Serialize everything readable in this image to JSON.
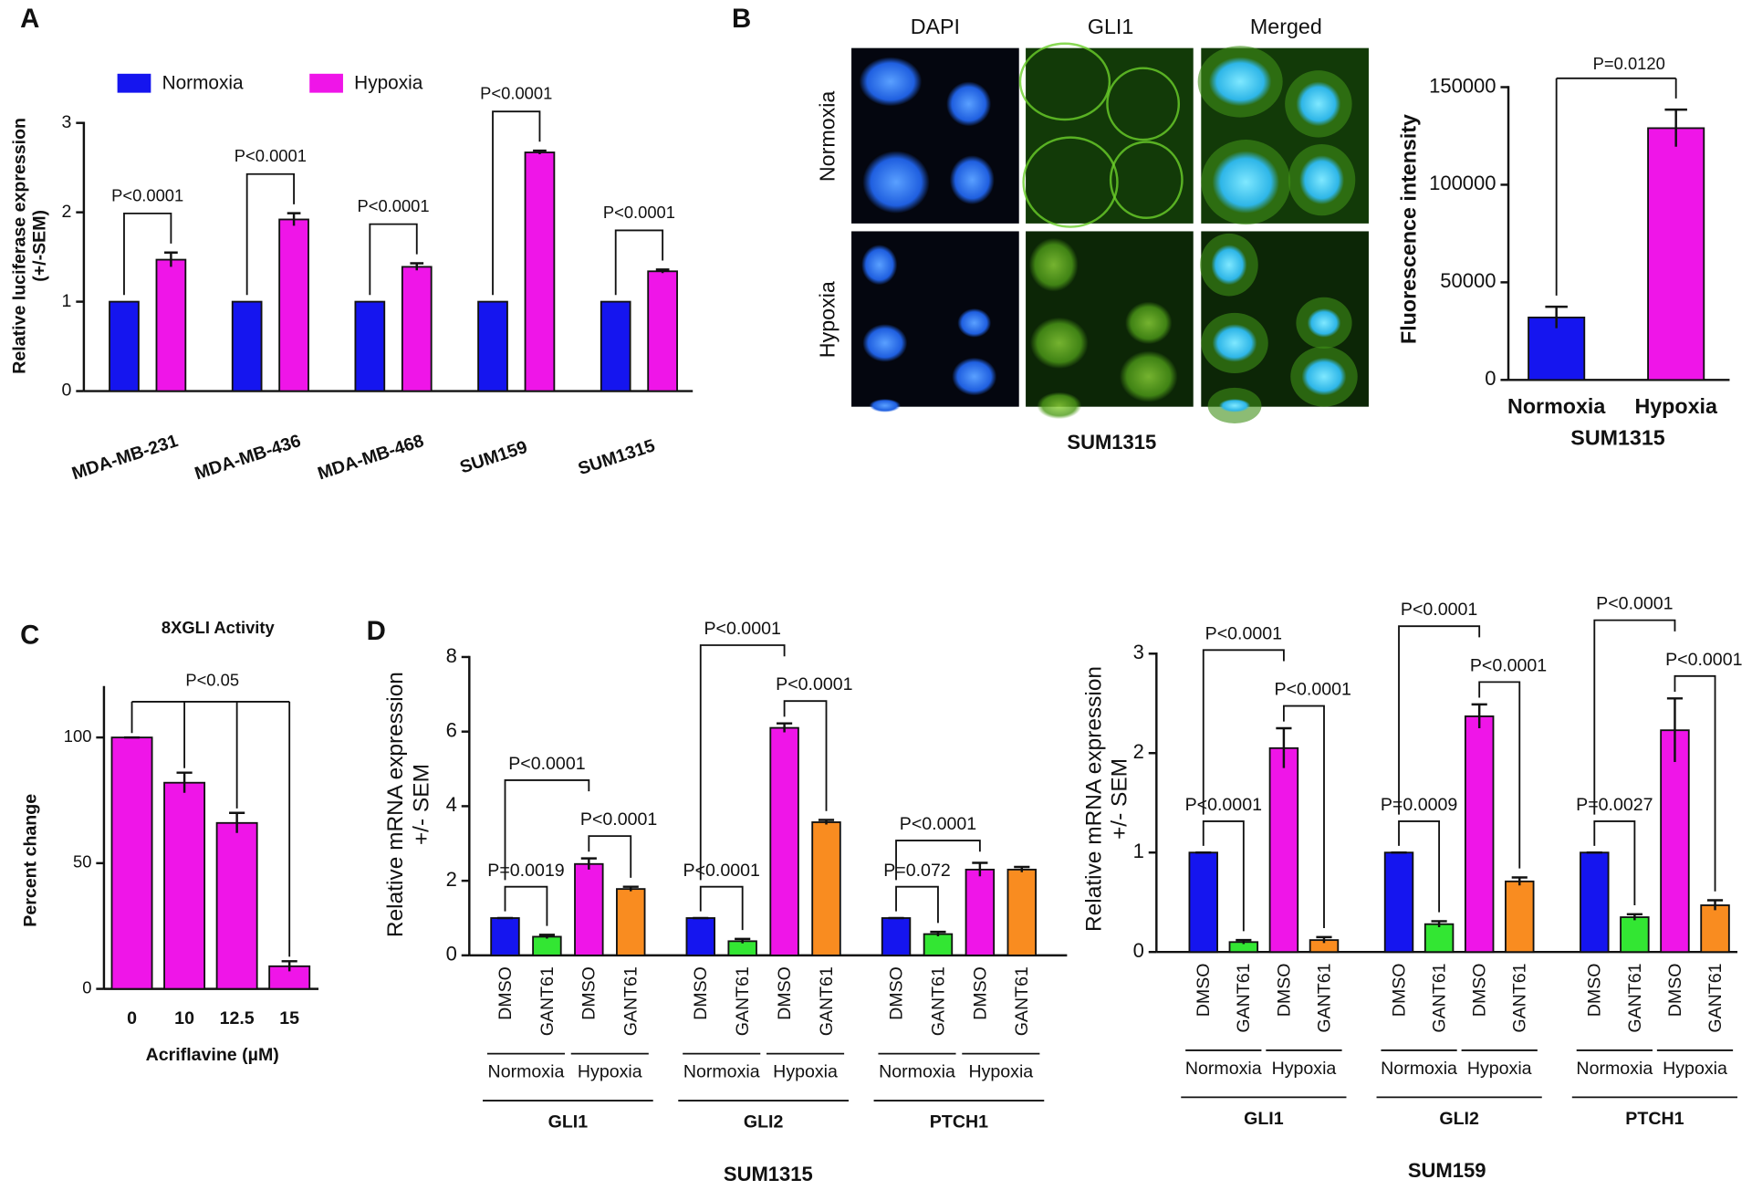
{
  "panel_labels": [
    "A",
    "B",
    "C",
    "D"
  ],
  "micrograph": {
    "columns": [
      "DAPI",
      "GLI1",
      "Merged"
    ],
    "rows": [
      "Normoxia",
      "Hypoxia"
    ],
    "caption": "SUM1315"
  },
  "chart_data": [
    {
      "type": "grouped-bar",
      "ylabel": [
        "Relative luciferase expression",
        "(+/-SEM)"
      ],
      "categories": [
        "MDA-MB-231",
        "MDA-MB-436",
        "MDA-MB-468",
        "SUM159",
        "SUM1315"
      ],
      "series": [
        {
          "name": "Normoxia",
          "color": "#1515ef",
          "values": [
            1,
            1,
            1,
            1,
            1
          ]
        },
        {
          "name": "Hypoxia",
          "color": "#ef15e8",
          "values": [
            1.47,
            1.92,
            1.39,
            2.67,
            1.34
          ],
          "errors": [
            0.08,
            0.07,
            0.04,
            0.02,
            0.02
          ]
        }
      ],
      "annotations": [
        "P<0.0001",
        "P<0.0001",
        "P<0.0001",
        "P<0.0001",
        "P<0.0001"
      ],
      "ylim": [
        0,
        3
      ],
      "yticks": [
        0,
        1,
        2,
        3
      ]
    },
    {
      "type": "bar",
      "ylabel": "Fluorescence intensity",
      "xlabel": "SUM1315",
      "categories": [
        "Normoxia",
        "Hypoxia"
      ],
      "values": [
        32000,
        129000
      ],
      "errors": [
        5500,
        9500
      ],
      "colors": [
        "#1515ef",
        "#ef15e8"
      ],
      "annotations": [
        "P=0.0120"
      ],
      "ylim": [
        0,
        150000
      ],
      "yticks": [
        0,
        50000,
        100000,
        150000
      ]
    },
    {
      "type": "bar",
      "title": "8XGLI Activity",
      "ylabel": "Percent change",
      "xlabel": "Acriflavine (µM)",
      "categories": [
        "0",
        "10",
        "12.5",
        "15"
      ],
      "values": [
        100,
        82,
        66,
        9
      ],
      "errors": [
        0,
        4,
        4,
        2
      ],
      "color": "#ef15e8",
      "annotations": [
        "P<0.05"
      ],
      "ylim": [
        0,
        120
      ],
      "yticks": [
        0,
        50,
        100
      ]
    },
    {
      "type": "gene-bar",
      "ylabel": [
        "Relative mRNA expression",
        "+/- SEM"
      ],
      "cell_line": "SUM1315",
      "treatments": [
        "DMSO",
        "GANT61"
      ],
      "conditions": [
        "Normoxia",
        "Hypoxia"
      ],
      "colors": [
        "#1515ef",
        "#33e633",
        "#ef15e8",
        "#f98c20"
      ],
      "groups": [
        {
          "name": "GLI1",
          "values": [
            1,
            0.5,
            2.45,
            1.78
          ],
          "errors": [
            0,
            0.05,
            0.15,
            0.06
          ],
          "annotations": [
            "P=0.0019",
            "P<0.0001",
            "P<0.0001"
          ]
        },
        {
          "name": "GLI2",
          "values": [
            1,
            0.38,
            6.1,
            3.57
          ],
          "errors": [
            0,
            0.06,
            0.12,
            0.06
          ],
          "annotations": [
            "P<0.0001",
            "P<0.0001",
            "P<0.0001"
          ]
        },
        {
          "name": "PTCH1",
          "values": [
            1,
            0.57,
            2.3,
            2.3
          ],
          "errors": [
            0,
            0.06,
            0.18,
            0.07
          ],
          "annotations": [
            "P=0.072",
            "P<0.0001",
            null
          ]
        }
      ],
      "ylim": [
        0,
        8
      ],
      "yticks": [
        0,
        2,
        4,
        6,
        8
      ]
    },
    {
      "type": "gene-bar",
      "ylabel": [
        "Relative mRNA expression",
        "+/- SEM"
      ],
      "cell_line": "SUM159",
      "treatments": [
        "DMSO",
        "GANT61"
      ],
      "conditions": [
        "Normoxia",
        "Hypoxia"
      ],
      "colors": [
        "#1515ef",
        "#33e633",
        "#ef15e8",
        "#f98c20"
      ],
      "groups": [
        {
          "name": "GLI1",
          "values": [
            1,
            0.1,
            2.05,
            0.12
          ],
          "errors": [
            0,
            0.02,
            0.2,
            0.03
          ],
          "annotations": [
            "P<0.0001",
            "P<0.0001",
            "P<0.0001"
          ]
        },
        {
          "name": "GLI2",
          "values": [
            1,
            0.28,
            2.37,
            0.71
          ],
          "errors": [
            0,
            0.03,
            0.12,
            0.04
          ],
          "annotations": [
            "P=0.0009",
            "P<0.0001",
            "P<0.0001"
          ]
        },
        {
          "name": "PTCH1",
          "values": [
            1,
            0.35,
            2.23,
            0.47
          ],
          "errors": [
            0,
            0.03,
            0.32,
            0.05
          ],
          "annotations": [
            "P=0.0027",
            "P<0.0001",
            "P<0.0001"
          ]
        }
      ],
      "ylim": [
        0,
        3
      ],
      "yticks": [
        0,
        1,
        2,
        3
      ]
    }
  ]
}
